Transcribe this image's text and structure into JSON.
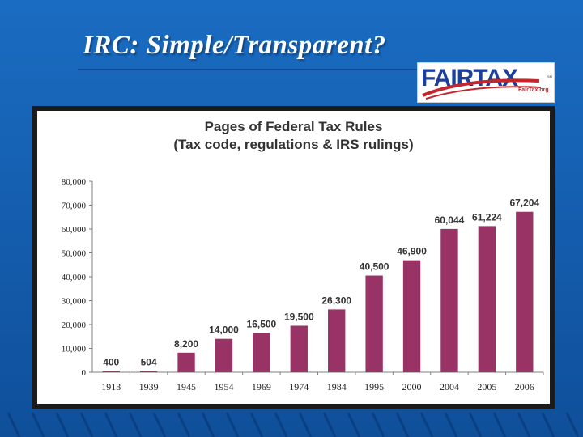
{
  "slide": {
    "title": "IRC: Simple/Transparent?",
    "logo_text": "FAIRTAX",
    "logo_subtext": "FairTax.org",
    "logo_mark": "SM",
    "colors": {
      "background": "#1565b8",
      "bar": "#993366",
      "frame": "#1b1b1b"
    }
  },
  "chart_data": {
    "type": "bar",
    "title": "Pages of Federal Tax Rules",
    "subtitle": "(Tax code, regulations & IRS rulings)",
    "categories": [
      "1913",
      "1939",
      "1945",
      "1954",
      "1969",
      "1974",
      "1984",
      "1995",
      "2000",
      "2004",
      "2005",
      "2006"
    ],
    "values": [
      400,
      504,
      8200,
      14000,
      16500,
      19500,
      26300,
      40500,
      46900,
      60044,
      61224,
      67204
    ],
    "data_labels": [
      "400",
      "504",
      "8,200",
      "14,000",
      "16,500",
      "19,500",
      "26,300",
      "40,500",
      "46,900",
      "60,044",
      "61,224",
      "67,204"
    ],
    "y_ticks": [
      "0",
      "10,000",
      "20,000",
      "30,000",
      "40,000",
      "50,000",
      "60,000",
      "70,000",
      "80,000"
    ],
    "xlabel": "",
    "ylabel": "",
    "ylim": [
      0,
      80000
    ],
    "grid": false,
    "legend": "none",
    "bar_color": "#993366"
  }
}
